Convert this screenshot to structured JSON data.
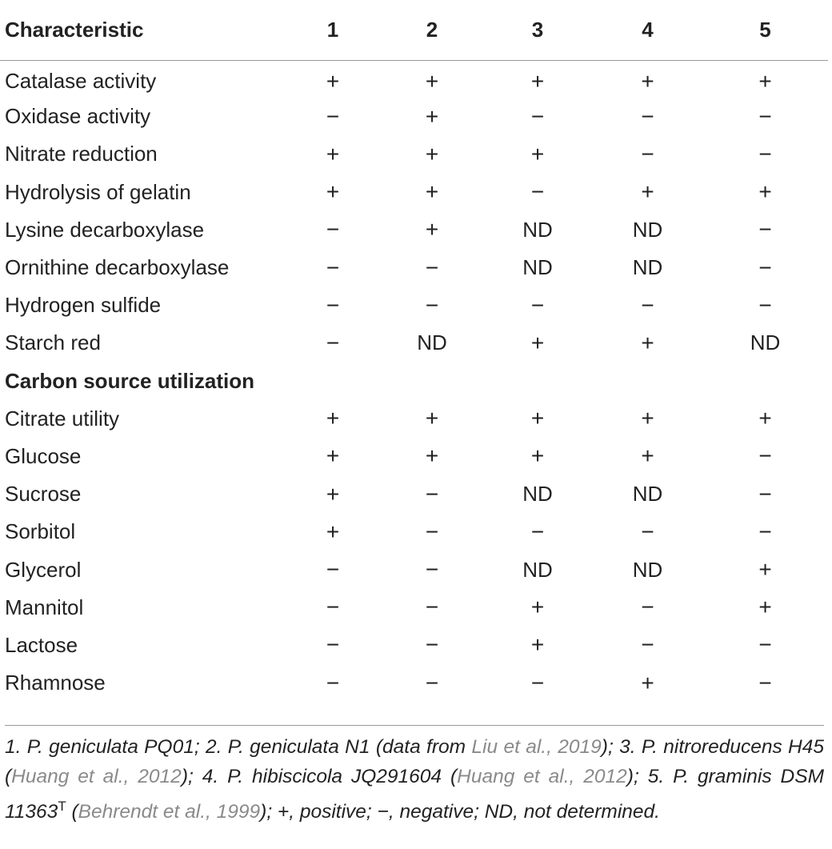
{
  "table": {
    "headers": [
      "Characteristic",
      "1",
      "2",
      "3",
      "4",
      "5"
    ],
    "rows": [
      {
        "label": "Catalase activity",
        "values": [
          "+",
          "+",
          "+",
          "+",
          "+"
        ]
      },
      {
        "label": "Oxidase activity",
        "values": [
          "−",
          "+",
          "−",
          "−",
          "−"
        ]
      },
      {
        "label": "Nitrate reduction",
        "values": [
          "+",
          "+",
          "+",
          "−",
          "−"
        ]
      },
      {
        "label": "Hydrolysis of gelatin",
        "values": [
          "+",
          "+",
          "−",
          "+",
          "+"
        ]
      },
      {
        "label": "Lysine decarboxylase",
        "values": [
          "−",
          "+",
          "ND",
          "ND",
          "−"
        ]
      },
      {
        "label": "Ornithine decarboxylase",
        "values": [
          "−",
          "−",
          "ND",
          "ND",
          "−"
        ]
      },
      {
        "label": "Hydrogen sulfide",
        "values": [
          "−",
          "−",
          "−",
          "−",
          "−"
        ]
      },
      {
        "label": "Starch red",
        "values": [
          "−",
          "ND",
          "+",
          "+",
          "ND"
        ]
      },
      {
        "section": "Carbon source utilization"
      },
      {
        "label": "Citrate utility",
        "values": [
          "+",
          "+",
          "+",
          "+",
          "+"
        ]
      },
      {
        "label": "Glucose",
        "values": [
          "+",
          "+",
          "+",
          "+",
          "−"
        ]
      },
      {
        "label": "Sucrose",
        "values": [
          "+",
          "−",
          "ND",
          "ND",
          "−"
        ]
      },
      {
        "label": "Sorbitol",
        "values": [
          "+",
          "−",
          "−",
          "−",
          "−"
        ]
      },
      {
        "label": "Glycerol",
        "values": [
          "−",
          "−",
          "ND",
          "ND",
          "+"
        ]
      },
      {
        "label": "Mannitol",
        "values": [
          "−",
          "−",
          "+",
          "−",
          "+"
        ]
      },
      {
        "label": "Lactose",
        "values": [
          "−",
          "−",
          "+",
          "−",
          "−"
        ]
      },
      {
        "label": "Rhamnose",
        "values": [
          "−",
          "−",
          "−",
          "+",
          "−"
        ]
      }
    ]
  },
  "footnote": {
    "t1": "1. P. geniculata PQ01; 2. P. geniculata N1 (data from ",
    "r1": "Liu et al., 2019",
    "t2": "); 3. P. nitroreducens H45 (",
    "r2": "Huang et al., 2012",
    "t3": "); 4. P. hibiscicola JQ291604 (",
    "r3": "Huang et al., 2012",
    "t4": "); 5. P. graminis DSM 11363",
    "sup": "T",
    "t5": " (",
    "r4": "Behrendt et al., 1999",
    "t6": "); +, positive; −, negative; ND, not determined."
  }
}
